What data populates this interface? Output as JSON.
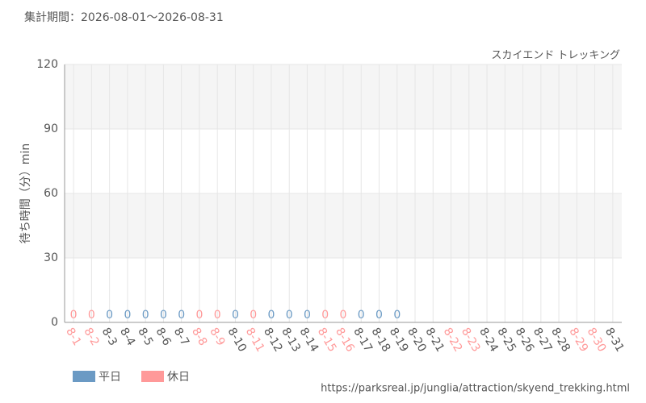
{
  "chart_data": {
    "type": "bar",
    "subtitle": "集計期間：2026-08-01～2026-08-31",
    "title": "スカイエンド トレッキング",
    "y_label": "待ち時間（分）min",
    "source": "https://parksreal.jp/junglia/attraction/skyend_trekking.html",
    "categories": [
      "8-1",
      "8-2",
      "8-3",
      "8-4",
      "8-5",
      "8-6",
      "8-7",
      "8-8",
      "8-9",
      "8-10",
      "8-11",
      "8-12",
      "8-13",
      "8-14",
      "8-15",
      "8-16",
      "8-17",
      "8-18",
      "8-19",
      "8-20",
      "8-21",
      "8-22",
      "8-23",
      "8-24",
      "8-25",
      "8-26",
      "8-27",
      "8-28",
      "8-29",
      "8-30",
      "8-31"
    ],
    "label_colors": [
      "#f99",
      "#f99",
      "#555",
      "#555",
      "#555",
      "#555",
      "#555",
      "#f99",
      "#f99",
      "#555",
      "#f99",
      "#555",
      "#555",
      "#555",
      "#f99",
      "#f99",
      "#555",
      "#555",
      "#555",
      "#555",
      "#555",
      "#f99",
      "#f99",
      "#555",
      "#555",
      "#555",
      "#555",
      "#555",
      "#f99",
      "#f99",
      "#555"
    ],
    "series": [
      {
        "name": "平日",
        "color": "#6b9ac4",
        "values": [
          null,
          null,
          0,
          0,
          0,
          0,
          0,
          null,
          null,
          0,
          null,
          0,
          0,
          0,
          null,
          null,
          0,
          0,
          0,
          null,
          null,
          null,
          null,
          null,
          null,
          null,
          null,
          null,
          null,
          null,
          null
        ]
      },
      {
        "name": "休日",
        "color": "#ff9999",
        "values": [
          0,
          0,
          null,
          null,
          null,
          null,
          null,
          0,
          0,
          null,
          0,
          null,
          null,
          null,
          0,
          0,
          null,
          null,
          null,
          null,
          null,
          null,
          null,
          null,
          null,
          null,
          null,
          null,
          null,
          null,
          null
        ]
      }
    ],
    "ylim": [
      0,
      120
    ],
    "yticks": [
      0,
      30,
      60,
      90,
      120
    ],
    "grid": true
  }
}
